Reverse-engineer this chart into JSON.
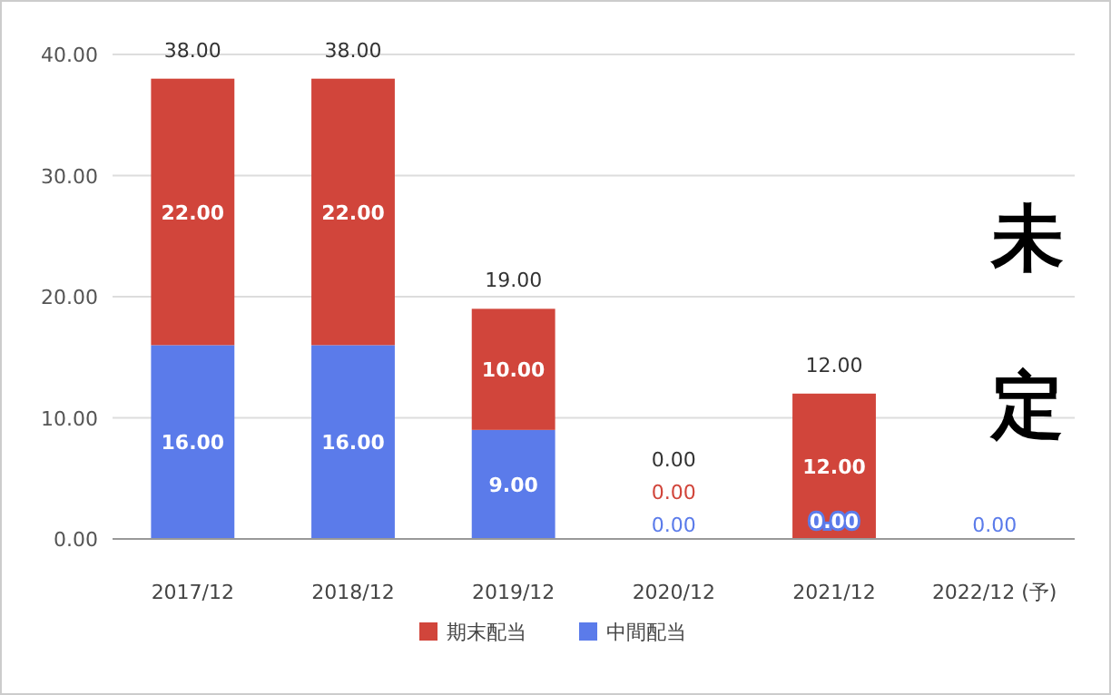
{
  "chart_data": {
    "type": "bar",
    "stacked": true,
    "categories": [
      "2017/12",
      "2018/12",
      "2019/12",
      "2020/12",
      "2021/12",
      "2022/12 (予)"
    ],
    "series": [
      {
        "name": "中間配当",
        "color": "#5b7bea",
        "values": [
          16,
          16,
          9,
          0,
          0,
          0
        ],
        "value_labels": [
          "16.00",
          "16.00",
          "9.00",
          "0.00",
          "0.00",
          "0.00"
        ]
      },
      {
        "name": "期末配当",
        "color": "#d1453b",
        "values": [
          22,
          22,
          10,
          0,
          12,
          0
        ],
        "value_labels": [
          "22.00",
          "22.00",
          "10.00",
          "0.00",
          "12.00",
          null
        ]
      }
    ],
    "totals": [
      "38.00",
      "38.00",
      "19.00",
      "0.00",
      "12.00",
      null
    ],
    "ylim": [
      0,
      40
    ],
    "yticks": [
      {
        "value": 0,
        "label": "0.00"
      },
      {
        "value": 10,
        "label": "10.00"
      },
      {
        "value": 20,
        "label": "20.00"
      },
      {
        "value": 30,
        "label": "30.00"
      },
      {
        "value": 40,
        "label": "40.00"
      }
    ],
    "grid": "y",
    "legend": "bottom",
    "annotations": [
      "未定"
    ]
  }
}
